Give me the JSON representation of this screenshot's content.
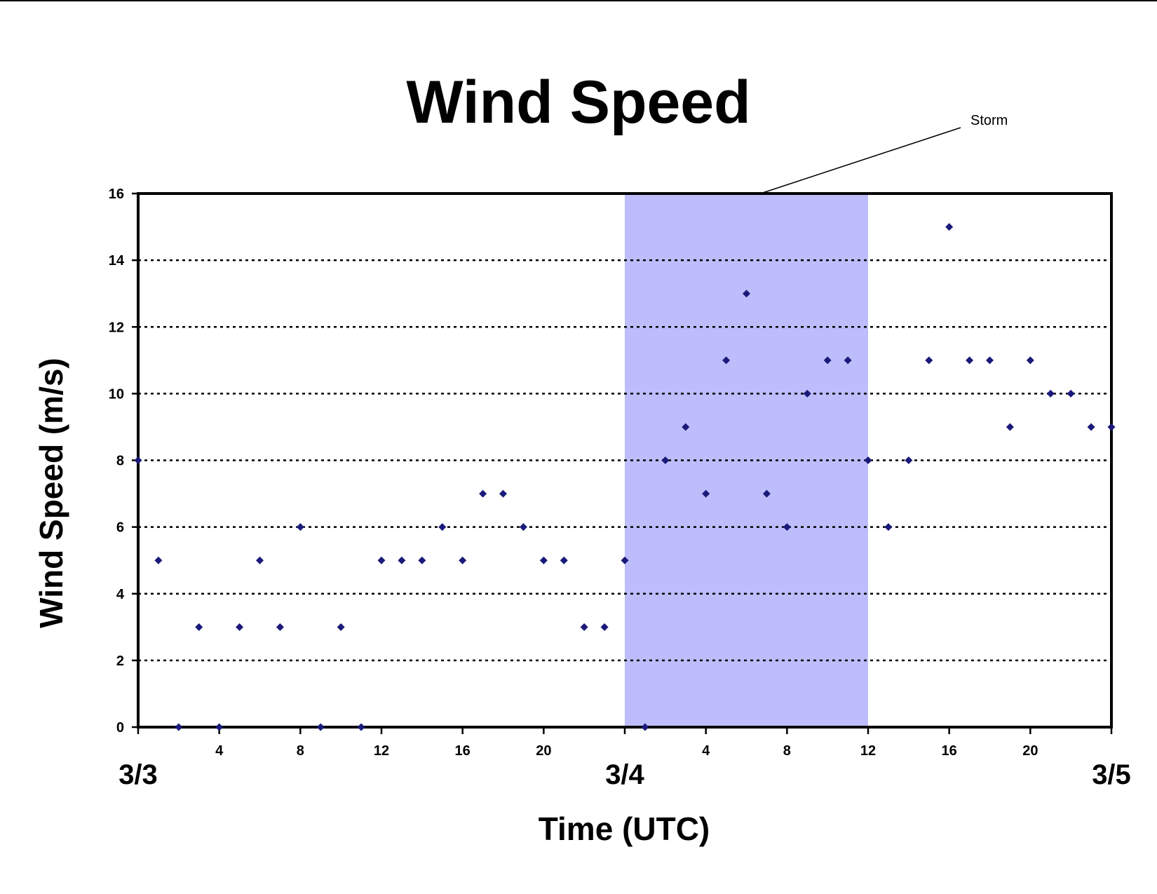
{
  "chart_data": {
    "type": "scatter",
    "title": "Wind Speed",
    "xlabel": "Time (UTC)",
    "ylabel": "Wind Speed (m/s)",
    "ylim": [
      0,
      16
    ],
    "y_ticks": [
      "0",
      "2",
      "4",
      "6",
      "8",
      "10",
      "12",
      "14",
      "16"
    ],
    "grid": "horizontal dotted",
    "x_unit": "hours from 3/3 00 UTC",
    "xlim": [
      0,
      48
    ],
    "x_hour_ticks": [
      "4",
      "8",
      "12",
      "16",
      "20",
      "4",
      "8",
      "12",
      "16",
      "20"
    ],
    "x_date_labels": [
      "3/3",
      "3/4",
      "3/5"
    ],
    "annotation": {
      "text": "Storm",
      "x_range": [
        24,
        36
      ]
    },
    "colors": {
      "marker": "#1a1a7a",
      "storm_band": "#bdbdfb",
      "grid": "#000000"
    },
    "series": [
      {
        "x": [
          0,
          1,
          2,
          3,
          4,
          5,
          6,
          7,
          8,
          9,
          10,
          11,
          12,
          13,
          14,
          15,
          16,
          17,
          18,
          19,
          20,
          21,
          22,
          23,
          24,
          25,
          26,
          27,
          28,
          29,
          30,
          31,
          32,
          33,
          34,
          35,
          36,
          37,
          38,
          39,
          40,
          41,
          42,
          43,
          44,
          45,
          46,
          47,
          48
        ],
        "y": [
          8,
          5,
          0,
          3,
          0,
          3,
          5,
          3,
          6,
          0,
          3,
          0,
          5,
          5,
          5,
          6,
          5,
          7,
          7,
          6,
          5,
          5,
          3,
          3,
          5,
          0,
          8,
          9,
          7,
          11,
          13,
          7,
          6,
          10,
          11,
          11,
          8,
          6,
          8,
          11,
          15,
          11,
          11,
          9,
          11,
          10,
          10,
          9,
          9
        ]
      }
    ]
  }
}
